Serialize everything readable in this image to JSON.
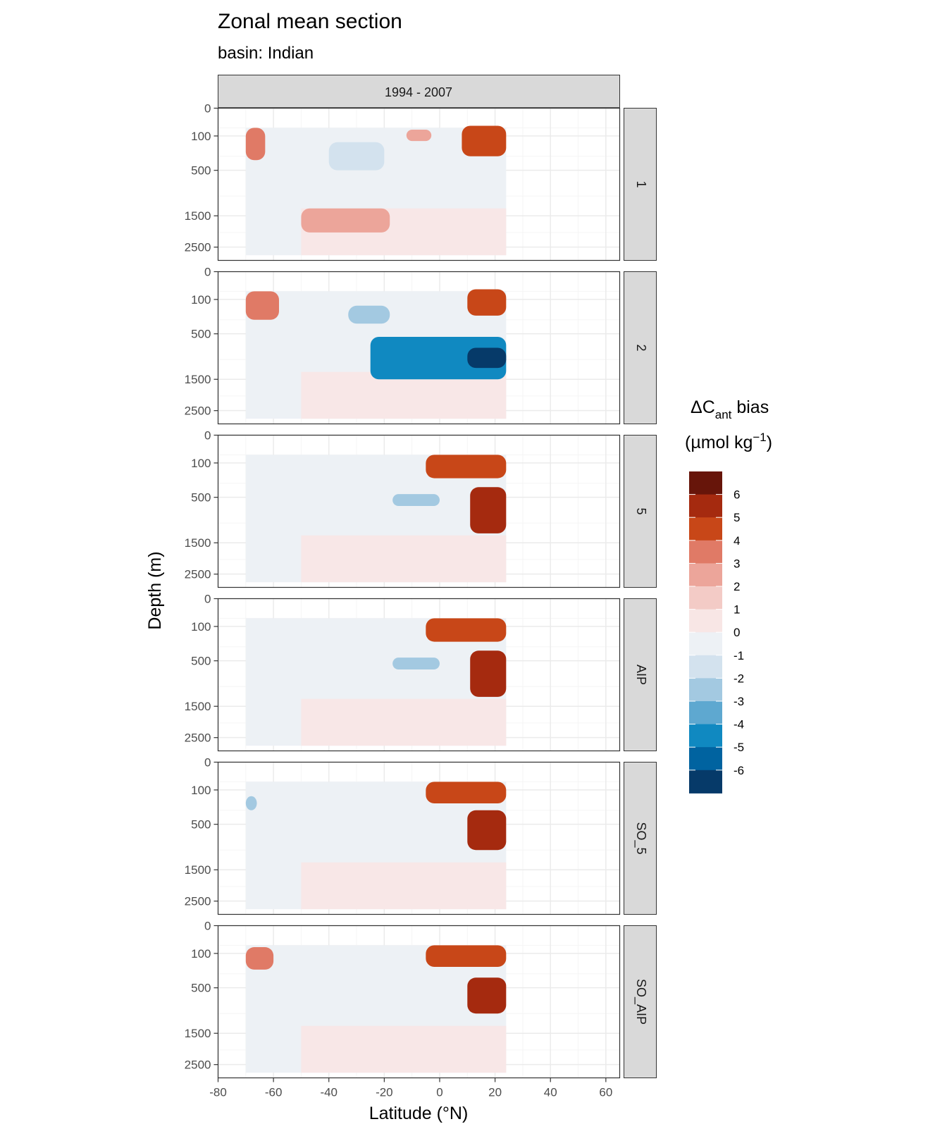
{
  "title": "Zonal mean section",
  "subtitle": "basin: Indian",
  "column_strip": "1994 - 2007",
  "x_axis_title": "Latitude (°N)",
  "y_axis_title": "Depth (m)",
  "legend": {
    "title_prefix": "ΔC",
    "title_subscript": "ant",
    "title_suffix": " bias",
    "units_prefix": "(µmol kg",
    "units_superscript": "−1",
    "units_suffix": ")"
  },
  "colors": {
    "panel_border": "#333333",
    "grid_major": "#ebebeb",
    "grid_minor": "#f5f5f5",
    "strip_fill": "#d9d9d9",
    "empty_fill": "#ffffff"
  },
  "chart_data": {
    "type": "heatmap",
    "title": "Zonal mean section",
    "subtitle": "basin: Indian",
    "xlabel": "Latitude (°N)",
    "ylabel": "Depth (m)",
    "x_ticks": [
      -80,
      -60,
      -40,
      -20,
      0,
      20,
      40,
      60
    ],
    "x_tick_labels": [
      "-80",
      "-60",
      "-40",
      "-20",
      "0",
      "20",
      "40",
      "60"
    ],
    "xlim": [
      -80,
      65
    ],
    "y_ticks": [
      0,
      100,
      500,
      1500,
      2500
    ],
    "y_tick_labels": [
      "0",
      "100",
      "500",
      "1500",
      "2500"
    ],
    "y_scale": "sqrt, reversed",
    "ylim": [
      0,
      3000
    ],
    "data_lat_range": [
      -70,
      24
    ],
    "grid": true,
    "column_facet": "1994 - 2007",
    "panels": [
      "1",
      "2",
      "5",
      "AIP",
      "SO_5",
      "SO_AIP"
    ],
    "legend_breaks": [
      "6",
      "5",
      "4",
      "3",
      "2",
      "1",
      "0",
      "-1",
      "-2",
      "-3",
      "-4",
      "-5",
      "-6"
    ],
    "legend_placement": "right",
    "color_bins": [
      {
        "range": "> 6",
        "color": "#67150a"
      },
      {
        "range": "5 to 6",
        "color": "#a52a0f"
      },
      {
        "range": "4 to 5",
        "color": "#c84718"
      },
      {
        "range": "3 to 4",
        "color": "#e07a66"
      },
      {
        "range": "2 to 3",
        "color": "#eca59a"
      },
      {
        "range": "1 to 2",
        "color": "#f3cbc6"
      },
      {
        "range": "0 to 1",
        "color": "#f8e6e5"
      },
      {
        "range": "-1 to 0",
        "color": "#edf1f5"
      },
      {
        "range": "-2 to -1",
        "color": "#d3e2ee"
      },
      {
        "range": "-3 to -2",
        "color": "#a3c9e1"
      },
      {
        "range": "-4 to -3",
        "color": "#5ea8d0"
      },
      {
        "range": "-5 to -4",
        "color": "#1089c1"
      },
      {
        "range": "-6 to -5",
        "color": "#0063a0"
      },
      {
        "range": "< -6",
        "color": "#063a69"
      }
    ],
    "features": [
      {
        "panel": "1",
        "lat": [
          -70,
          -63
        ],
        "depth": [
          50,
          350
        ],
        "bias": 3.5
      },
      {
        "panel": "1",
        "lat": [
          -12,
          -3
        ],
        "depth": [
          60,
          140
        ],
        "bias": 2.5
      },
      {
        "panel": "1",
        "lat": [
          8,
          24
        ],
        "depth": [
          40,
          300
        ],
        "bias": 4.0
      },
      {
        "panel": "1",
        "lat": [
          -40,
          -20
        ],
        "depth": [
          150,
          500
        ],
        "bias": -1.5
      },
      {
        "panel": "1",
        "lat": [
          -50,
          -18
        ],
        "depth": [
          1300,
          2000
        ],
        "bias": 2.5
      },
      {
        "panel": "1",
        "lat": [
          -70,
          -55
        ],
        "depth": [
          400,
          2700
        ],
        "bias": -0.5
      },
      {
        "panel": "2",
        "lat": [
          -70,
          -58
        ],
        "depth": [
          50,
          300
        ],
        "bias": 3.0
      },
      {
        "panel": "2",
        "lat": [
          10,
          24
        ],
        "depth": [
          40,
          250
        ],
        "bias": 4.0
      },
      {
        "panel": "2",
        "lat": [
          -33,
          -18
        ],
        "depth": [
          150,
          350
        ],
        "bias": -2.0
      },
      {
        "panel": "2",
        "lat": [
          -25,
          24
        ],
        "depth": [
          550,
          1500
        ],
        "bias": -4.5
      },
      {
        "panel": "2",
        "lat": [
          10,
          24
        ],
        "depth": [
          750,
          1200
        ],
        "bias": -6.5
      },
      {
        "panel": "5",
        "lat": [
          -5,
          24
        ],
        "depth": [
          50,
          240
        ],
        "bias": 4.5
      },
      {
        "panel": "5",
        "lat": [
          11,
          24
        ],
        "depth": [
          350,
          1250
        ],
        "bias": 5.5
      },
      {
        "panel": "5",
        "lat": [
          -17,
          0
        ],
        "depth": [
          450,
          650
        ],
        "bias": -2.0
      },
      {
        "panel": "AIP",
        "lat": [
          -5,
          24
        ],
        "depth": [
          50,
          240
        ],
        "bias": 4.5
      },
      {
        "panel": "AIP",
        "lat": [
          11,
          24
        ],
        "depth": [
          350,
          1250
        ],
        "bias": 5.5
      },
      {
        "panel": "AIP",
        "lat": [
          -17,
          0
        ],
        "depth": [
          450,
          650
        ],
        "bias": -2.0
      },
      {
        "panel": "SO_5",
        "lat": [
          -5,
          24
        ],
        "depth": [
          50,
          220
        ],
        "bias": 4.5
      },
      {
        "panel": "SO_5",
        "lat": [
          10,
          24
        ],
        "depth": [
          300,
          1000
        ],
        "bias": 5.0
      },
      {
        "panel": "SO_5",
        "lat": [
          -70,
          -66
        ],
        "depth": [
          150,
          300
        ],
        "bias": -2.0
      },
      {
        "panel": "SO_AIP",
        "lat": [
          -5,
          24
        ],
        "depth": [
          50,
          220
        ],
        "bias": 4.5
      },
      {
        "panel": "SO_AIP",
        "lat": [
          10,
          24
        ],
        "depth": [
          350,
          1000
        ],
        "bias": 5.0
      },
      {
        "panel": "SO_AIP",
        "lat": [
          -70,
          -60
        ],
        "depth": [
          60,
          250
        ],
        "bias": 3.0
      }
    ]
  }
}
